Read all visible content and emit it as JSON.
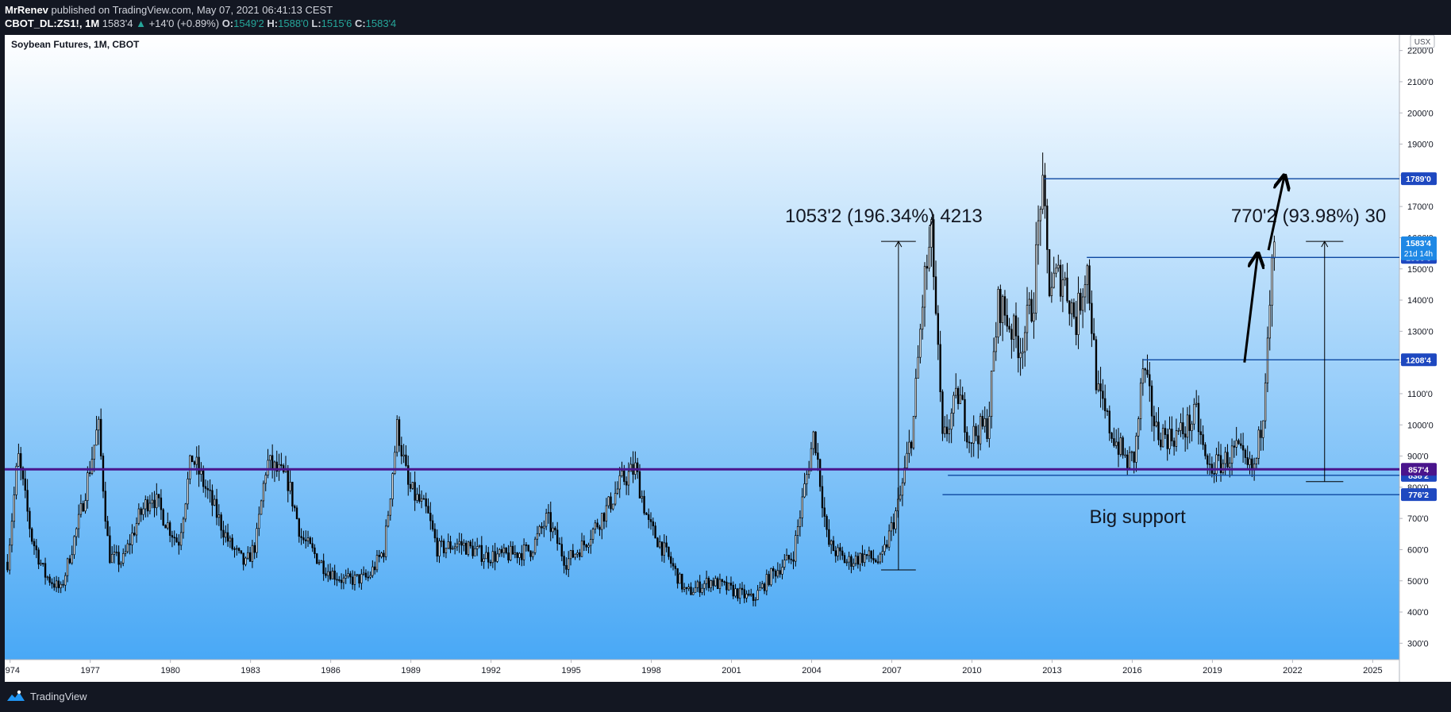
{
  "header": {
    "author": "MrRenev",
    "published": "published on TradingView.com, May 07, 2021 06:41:13 CEST",
    "symbol": "CBOT_DL:ZS1!, 1M",
    "last": "1583'4",
    "change": "+14'0 (+0.89%)",
    "open_label": "O:",
    "open": "1549'2",
    "high_label": "H:",
    "high": "1588'0",
    "low_label": "L:",
    "low": "1515'6",
    "close_label": "C:",
    "close": "1583'4"
  },
  "footer": {
    "brand": "TradingView"
  },
  "colors": {
    "bg_top": "#ffffff",
    "bg_bottom": "#42a5f5",
    "candle": "#000000",
    "level_line": "#0d47a1",
    "support_line": "#4a148c",
    "price_badge": "#1e88e5"
  },
  "chart_data": {
    "type": "candlestick",
    "title": "Soybean Futures, 1M, CBOT",
    "currency": "USX",
    "x_range": [
      1973.8,
      2026
    ],
    "y_range": [
      250,
      2250
    ],
    "y_ticks": [
      {
        "v": 300,
        "label": "300'0"
      },
      {
        "v": 400,
        "label": "400'0"
      },
      {
        "v": 500,
        "label": "500'0"
      },
      {
        "v": 600,
        "label": "600'0"
      },
      {
        "v": 700,
        "label": "700'0"
      },
      {
        "v": 800,
        "label": "800'0"
      },
      {
        "v": 900,
        "label": "900'0"
      },
      {
        "v": 1000,
        "label": "1000'0"
      },
      {
        "v": 1100,
        "label": "1100'0"
      },
      {
        "v": 1200,
        "label": "1200'0"
      },
      {
        "v": 1300,
        "label": "1300'0"
      },
      {
        "v": 1400,
        "label": "1400'0"
      },
      {
        "v": 1500,
        "label": "1500'0"
      },
      {
        "v": 1600,
        "label": "1600'0"
      },
      {
        "v": 1700,
        "label": "1700'0"
      },
      {
        "v": 1800,
        "label": "1800'0"
      },
      {
        "v": 1900,
        "label": "1900'0"
      },
      {
        "v": 2000,
        "label": "2000'0"
      },
      {
        "v": 2100,
        "label": "2100'0"
      },
      {
        "v": 2200,
        "label": "2200'0"
      }
    ],
    "x_ticks": [
      {
        "v": 1974,
        "label": "1974"
      },
      {
        "v": 1977,
        "label": "1977"
      },
      {
        "v": 1980,
        "label": "1980"
      },
      {
        "v": 1983,
        "label": "1983"
      },
      {
        "v": 1986,
        "label": "1986"
      },
      {
        "v": 1989,
        "label": "1989"
      },
      {
        "v": 1992,
        "label": "1992"
      },
      {
        "v": 1995,
        "label": "1995"
      },
      {
        "v": 1998,
        "label": "1998"
      },
      {
        "v": 2001,
        "label": "2001"
      },
      {
        "v": 2004,
        "label": "2004"
      },
      {
        "v": 2007,
        "label": "2007"
      },
      {
        "v": 2010,
        "label": "2010"
      },
      {
        "v": 2013,
        "label": "2013"
      },
      {
        "v": 2016,
        "label": "2016"
      },
      {
        "v": 2019,
        "label": "2019"
      },
      {
        "v": 2022,
        "label": "2022"
      },
      {
        "v": 2025,
        "label": "2025"
      }
    ],
    "price_path": [
      [
        1973.9,
        560
      ],
      [
        1974.3,
        900
      ],
      [
        1974.8,
        640
      ],
      [
        1975.3,
        520
      ],
      [
        1975.9,
        470
      ],
      [
        1976.6,
        700
      ],
      [
        1977.3,
        1000
      ],
      [
        1977.7,
        580
      ],
      [
        1978.2,
        560
      ],
      [
        1978.8,
        700
      ],
      [
        1979.3,
        780
      ],
      [
        1979.9,
        680
      ],
      [
        1980.3,
        620
      ],
      [
        1980.8,
        900
      ],
      [
        1981.3,
        800
      ],
      [
        1982.2,
        620
      ],
      [
        1982.8,
        550
      ],
      [
        1983.2,
        620
      ],
      [
        1983.6,
        880
      ],
      [
        1984.4,
        820
      ],
      [
        1984.9,
        640
      ],
      [
        1985.8,
        540
      ],
      [
        1986.5,
        500
      ],
      [
        1987.4,
        510
      ],
      [
        1988.0,
        600
      ],
      [
        1988.5,
        1000
      ],
      [
        1988.9,
        800
      ],
      [
        1989.6,
        720
      ],
      [
        1990.0,
        600
      ],
      [
        1990.8,
        620
      ],
      [
        1991.8,
        580
      ],
      [
        1992.5,
        580
      ],
      [
        1993.5,
        600
      ],
      [
        1994.1,
        700
      ],
      [
        1994.8,
        560
      ],
      [
        1995.5,
        620
      ],
      [
        1996.4,
        740
      ],
      [
        1996.9,
        820
      ],
      [
        1997.4,
        860
      ],
      [
        1997.9,
        680
      ],
      [
        1998.6,
        580
      ],
      [
        1999.3,
        460
      ],
      [
        2000.2,
        500
      ],
      [
        2001.0,
        470
      ],
      [
        2001.8,
        440
      ],
      [
        2002.5,
        520
      ],
      [
        2003.3,
        580
      ],
      [
        2004.1,
        980
      ],
      [
        2004.6,
        620
      ],
      [
        2005.3,
        560
      ],
      [
        2006.0,
        580
      ],
      [
        2006.6,
        560
      ],
      [
        2007.3,
        760
      ],
      [
        2007.8,
        1000
      ],
      [
        2008.2,
        1450
      ],
      [
        2008.5,
        1600
      ],
      [
        2008.9,
        940
      ],
      [
        2009.5,
        1100
      ],
      [
        2009.9,
        960
      ],
      [
        2010.6,
        1000
      ],
      [
        2011.0,
        1400
      ],
      [
        2011.8,
        1250
      ],
      [
        2012.3,
        1400
      ],
      [
        2012.6,
        1780
      ],
      [
        2012.9,
        1450
      ],
      [
        2013.4,
        1480
      ],
      [
        2013.9,
        1330
      ],
      [
        2014.3,
        1520
      ],
      [
        2014.7,
        1100
      ],
      [
        2015.2,
        980
      ],
      [
        2015.8,
        880
      ],
      [
        2016.1,
        900
      ],
      [
        2016.4,
        1180
      ],
      [
        2016.9,
        980
      ],
      [
        2017.4,
        960
      ],
      [
        2017.9,
        980
      ],
      [
        2018.4,
        1030
      ],
      [
        2018.8,
        860
      ],
      [
        2019.4,
        880
      ],
      [
        2019.9,
        920
      ],
      [
        2020.3,
        860
      ],
      [
        2020.6,
        860
      ],
      [
        2020.9,
        1050
      ],
      [
        2021.1,
        1380
      ],
      [
        2021.35,
        1583
      ]
    ],
    "levels": [
      {
        "price": 1789,
        "label": "1789'0",
        "x_start": 2012.7
      },
      {
        "price": 1536.75,
        "label": "1536'6",
        "x_start": 2014.3
      },
      {
        "price": 1208.5,
        "label": "1208'4",
        "x_start": 2016.4
      },
      {
        "price": 838.25,
        "label": "838'2",
        "x_start": 2009.1
      },
      {
        "price": 776.25,
        "label": "776'2",
        "x_start": 2008.9
      }
    ],
    "support_line": {
      "price": 857.5,
      "label": "857'4"
    },
    "current_price": {
      "price": 1583.5,
      "label": "1583'4",
      "countdown": "21d 14h"
    },
    "measures": [
      {
        "x": 2006.6,
        "x2": 2007.9,
        "from": 535,
        "to": 1588,
        "text": "1053'2 (196.34%) 4213",
        "text_x": 2006.7
      },
      {
        "x": 2022.5,
        "x2": 2023.9,
        "from": 818,
        "to": 1588,
        "text": "770'2 (93.98%) 30",
        "text_x": 2022.6
      }
    ],
    "arrows": [
      {
        "from": [
          2020.2,
          1200
        ],
        "to": [
          2020.7,
          1550
        ]
      },
      {
        "from": [
          2021.1,
          1560
        ],
        "to": [
          2021.7,
          1800
        ]
      }
    ],
    "annotations": [
      {
        "text": "Big support",
        "x": 2016.2,
        "y": 736
      }
    ]
  }
}
